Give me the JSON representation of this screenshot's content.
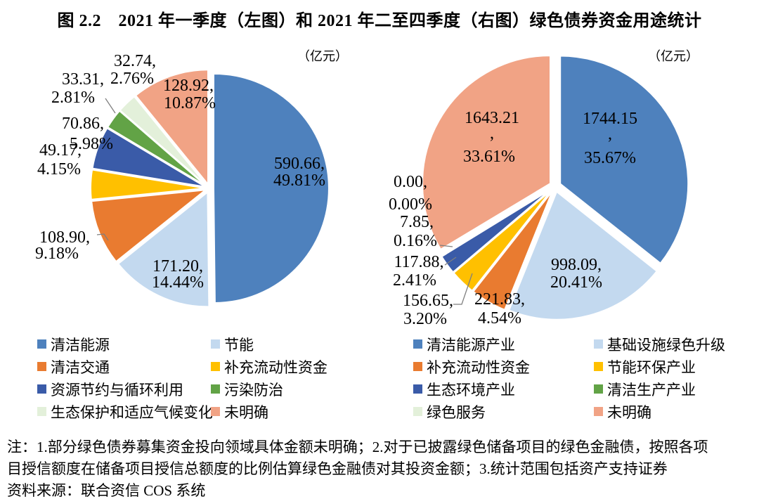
{
  "page_title": "图 2.2　2021 年一季度（左图）和 2021 年二至四季度（右图）绿色债券资金用途统计",
  "notes": {
    "line1": "注：1.部分绿色债券募集资金投向领域具体金额未明确；2.对于已披露绿色储备项目的绿色金融债，按照各项",
    "line2": "目授信额度在储备项目授信总额度的比例估算绿色金融债对其投资金额；3.统计范围包括资产支持证券",
    "source": "资料来源：联合资信 COS 系统"
  },
  "chart_data": [
    {
      "type": "pie",
      "name": "2021年一季度绿色债券资金用途（左图）",
      "unit_label": "（亿元）",
      "value_unit": "亿元",
      "start_angle_deg": 0,
      "direction": "clockwise",
      "legend_position": "bottom",
      "slices": [
        {
          "label": "清洁能源",
          "value": 590.66,
          "pct": 49.81,
          "label_lines": [
            "590.66,",
            "49.81%"
          ],
          "color": "#4E81BD"
        },
        {
          "label": "节能",
          "value": 171.2,
          "pct": 14.44,
          "label_lines": [
            "171.20,",
            "14.44%"
          ],
          "color": "#C3D9EF"
        },
        {
          "label": "清洁交通",
          "value": 108.9,
          "pct": 9.18,
          "label_lines": [
            "108.90,",
            "9.18%"
          ],
          "color": "#E97B30"
        },
        {
          "label": "补充流动性资金",
          "value": 49.17,
          "pct": 4.15,
          "label_lines": [
            "49.17,",
            "4.15%"
          ],
          "color": "#FFC000"
        },
        {
          "label": "资源节约与循环利用",
          "value": 70.86,
          "pct": 5.98,
          "label_lines": [
            "70.86,",
            "5.98%"
          ],
          "color": "#3A5BA8"
        },
        {
          "label": "污染防治",
          "value": 33.31,
          "pct": 2.81,
          "label_lines": [
            "33.31,",
            "2.81%"
          ],
          "color": "#62A346"
        },
        {
          "label": "生态保护和适应气候变化",
          "value": 32.74,
          "pct": 2.76,
          "label_lines": [
            "32.74,",
            "2.76%"
          ],
          "color": "#E3F0DA"
        },
        {
          "label": "未明确",
          "value": 128.92,
          "pct": 10.87,
          "label_lines": [
            "128.92,",
            "10.87%"
          ],
          "color": "#F1A385"
        }
      ]
    },
    {
      "type": "pie",
      "name": "2021年二至四季度绿色债券资金用途（右图）",
      "unit_label": "（亿元）",
      "value_unit": "亿元",
      "start_angle_deg": 0,
      "direction": "clockwise",
      "legend_position": "bottom",
      "slices": [
        {
          "label": "清洁能源产业",
          "value": 1744.15,
          "pct": 35.67,
          "label_lines": [
            "1744.15",
            ",",
            "35.67%"
          ],
          "color": "#4E81BD"
        },
        {
          "label": "基础设施绿色升级",
          "value": 998.09,
          "pct": 20.41,
          "label_lines": [
            "998.09,",
            "20.41%"
          ],
          "color": "#C3D9EF"
        },
        {
          "label": "补充流动性资金",
          "value": 221.83,
          "pct": 4.54,
          "label_lines": [
            "221.83,",
            "4.54%"
          ],
          "color": "#E97B30"
        },
        {
          "label": "节能环保产业",
          "value": 156.65,
          "pct": 3.2,
          "label_lines": [
            "156.65,",
            "3.20%"
          ],
          "color": "#FFC000"
        },
        {
          "label": "生态环境产业",
          "value": 117.88,
          "pct": 2.41,
          "label_lines": [
            "117.88,",
            "2.41%"
          ],
          "color": "#3A5BA8"
        },
        {
          "label": "清洁生产产业",
          "value": 7.85,
          "pct": 0.16,
          "label_lines": [
            "7.85,",
            "0.16%"
          ],
          "color": "#62A346"
        },
        {
          "label": "绿色服务",
          "value": 0.0,
          "pct": 0.0,
          "label_lines": [
            "0.00,",
            "0.00%"
          ],
          "color": "#E3F0DA"
        },
        {
          "label": "未明确",
          "value": 1643.21,
          "pct": 33.61,
          "label_lines": [
            "1643.21",
            ",",
            "33.61%"
          ],
          "color": "#F1A385"
        }
      ]
    }
  ]
}
